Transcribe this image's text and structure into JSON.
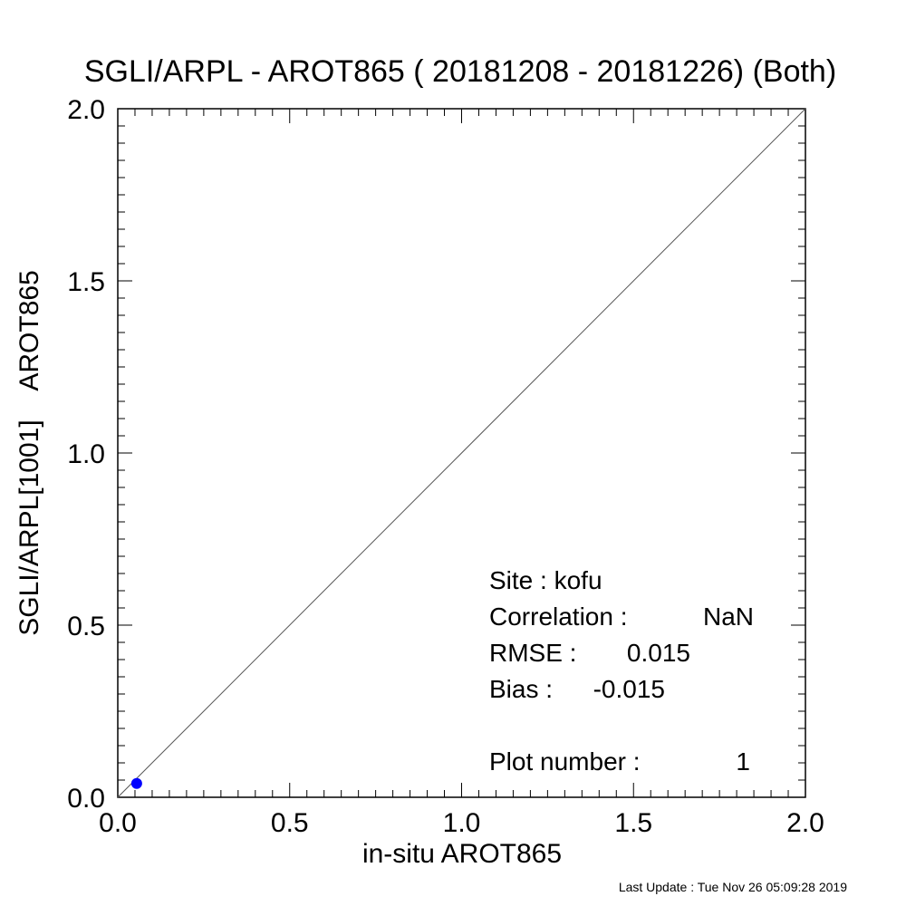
{
  "chart_data": {
    "type": "scatter",
    "title": "SGLI/ARPL - AROT865 ( 20181208 - 20181226) (Both)",
    "xlabel": "in-situ AROT865",
    "ylabel": "SGLI/ARPL[1001]    AROT865",
    "xlim": [
      0.0,
      2.0
    ],
    "ylim": [
      0.0,
      2.0
    ],
    "xticks": [
      "0.0",
      "0.5",
      "1.0",
      "1.5",
      "2.0"
    ],
    "yticks": [
      "0.0",
      "0.5",
      "1.0",
      "1.5",
      "2.0"
    ],
    "x_values": [
      0.0,
      0.5,
      1.0,
      1.5,
      2.0
    ],
    "y_values": [
      0.0,
      0.5,
      1.0,
      1.5,
      2.0
    ],
    "reference_line": "1:1",
    "points": [
      {
        "x": 0.055,
        "y": 0.04,
        "color": "#0000ff"
      }
    ],
    "stats": {
      "site": "Site : kofu",
      "correlation_label": "Correlation :",
      "correlation_value": "NaN",
      "rmse_label": "RMSE :",
      "rmse_value": "0.015",
      "bias_label": "Bias :",
      "bias_value": "-0.015",
      "plot_number_label": "Plot number :",
      "plot_number_value": "1"
    },
    "footer": "Last Update : Tue Nov 26 05:09:28 2019",
    "grid": false
  }
}
